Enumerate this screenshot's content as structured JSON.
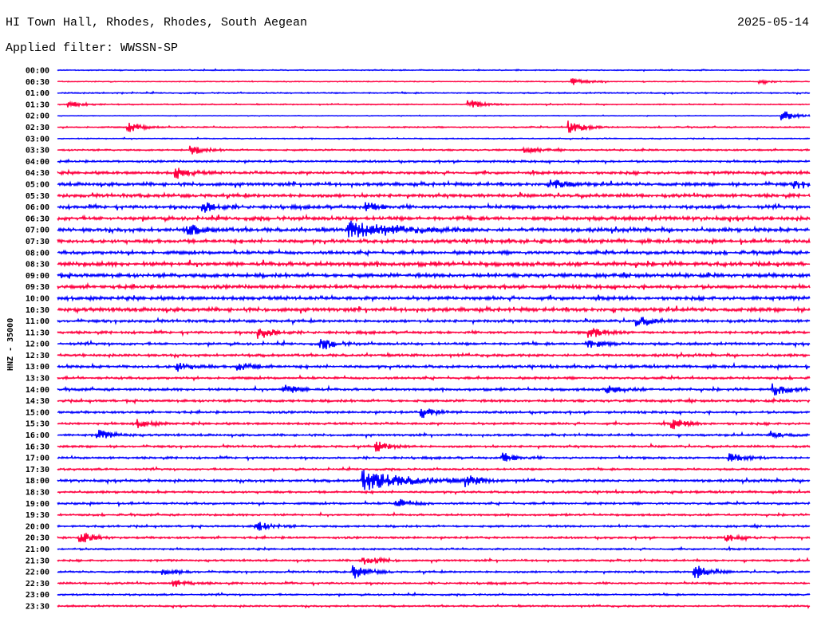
{
  "header": {
    "station": "HI Town Hall, Rhodes, Rhodes, South Aegean",
    "date": "2025-05-14",
    "filter": "Applied filter: WWSSN-SP"
  },
  "chart_data": {
    "type": "line",
    "title": "HI Town Hall, Rhodes, Rhodes, South Aegean",
    "ylabel": "HNZ - 35000",
    "minutes_per_row": 30,
    "colors": [
      "#0000ff",
      "#ff0040"
    ],
    "row_labels": [
      "00:00",
      "00:30",
      "01:00",
      "01:30",
      "02:00",
      "02:30",
      "03:00",
      "03:30",
      "04:00",
      "04:30",
      "05:00",
      "05:30",
      "06:00",
      "06:30",
      "07:00",
      "07:30",
      "08:00",
      "08:30",
      "09:00",
      "09:30",
      "10:00",
      "10:30",
      "11:00",
      "11:30",
      "12:00",
      "12:30",
      "13:00",
      "13:30",
      "14:00",
      "14:30",
      "15:00",
      "15:30",
      "16:00",
      "16:30",
      "17:00",
      "17:30",
      "18:00",
      "18:30",
      "19:00",
      "19:30",
      "20:00",
      "20:30",
      "21:00",
      "21:30",
      "22:00",
      "22:30",
      "23:00",
      "23:30"
    ],
    "noise_level": [
      0.5,
      0.4,
      0.6,
      0.5,
      0.3,
      0.6,
      0.5,
      0.8,
      1.0,
      1.4,
      1.6,
      1.6,
      1.6,
      1.8,
      1.8,
      1.7,
      1.6,
      2.0,
      1.9,
      1.7,
      1.8,
      1.8,
      1.3,
      1.2,
      1.2,
      1.2,
      1.3,
      1.1,
      1.2,
      1.2,
      1.1,
      1.1,
      1.0,
      1.0,
      1.0,
      0.9,
      1.2,
      1.0,
      1.0,
      0.9,
      1.0,
      1.0,
      0.9,
      0.9,
      0.9,
      0.9,
      0.8,
      0.8
    ],
    "events": [
      {
        "row": "00:30",
        "minute": 20.6,
        "amp": 2
      },
      {
        "row": "00:30",
        "minute": 28.1,
        "amp": 1
      },
      {
        "row": "01:30",
        "minute": 0.5,
        "amp": 2
      },
      {
        "row": "01:30",
        "minute": 16.5,
        "amp": 2.5
      },
      {
        "row": "02:00",
        "minute": 29,
        "amp": 3
      },
      {
        "row": "02:30",
        "minute": 2.9,
        "amp": 3
      },
      {
        "row": "02:30",
        "minute": 20.5,
        "amp": 4
      },
      {
        "row": "03:30",
        "minute": 5.4,
        "amp": 2.5
      },
      {
        "row": "03:30",
        "minute": 18.7,
        "amp": 2
      },
      {
        "row": "04:30",
        "minute": 4.8,
        "amp": 3
      },
      {
        "row": "05:00",
        "minute": 19.8,
        "amp": 3
      },
      {
        "row": "05:00",
        "minute": 29.5,
        "amp": 2
      },
      {
        "row": "06:00",
        "minute": 5.9,
        "amp": 3
      },
      {
        "row": "06:00",
        "minute": 12.4,
        "amp": 2.5
      },
      {
        "row": "07:00",
        "minute": 5.3,
        "amp": 3
      },
      {
        "row": "07:00",
        "minute": 11.7,
        "amp": 5
      },
      {
        "row": "11:00",
        "minute": 23.2,
        "amp": 3
      },
      {
        "row": "11:30",
        "minute": 8.1,
        "amp": 4
      },
      {
        "row": "11:30",
        "minute": 21.3,
        "amp": 3
      },
      {
        "row": "12:00",
        "minute": 10.6,
        "amp": 3
      },
      {
        "row": "12:00",
        "minute": 21.2,
        "amp": 3
      },
      {
        "row": "13:00",
        "minute": 4.8,
        "amp": 2.5
      },
      {
        "row": "13:00",
        "minute": 7.3,
        "amp": 2.5
      },
      {
        "row": "14:00",
        "minute": 9.1,
        "amp": 3
      },
      {
        "row": "14:00",
        "minute": 22.0,
        "amp": 2.5
      },
      {
        "row": "14:00",
        "minute": 28.6,
        "amp": 4
      },
      {
        "row": "15:00",
        "minute": 14.6,
        "amp": 3
      },
      {
        "row": "15:30",
        "minute": 3.2,
        "amp": 2.5
      },
      {
        "row": "15:30",
        "minute": 24.6,
        "amp": 3
      },
      {
        "row": "16:00",
        "minute": 1.7,
        "amp": 3
      },
      {
        "row": "16:00",
        "minute": 28.5,
        "amp": 2
      },
      {
        "row": "16:30",
        "minute": 12.8,
        "amp": 3
      },
      {
        "row": "17:00",
        "minute": 17.8,
        "amp": 3
      },
      {
        "row": "17:00",
        "minute": 26.9,
        "amp": 3
      },
      {
        "row": "18:00",
        "minute": 12.3,
        "amp": 6
      },
      {
        "row": "18:00",
        "minute": 16.4,
        "amp": 3
      },
      {
        "row": "19:00",
        "minute": 13.6,
        "amp": 2.5
      },
      {
        "row": "20:00",
        "minute": 8.0,
        "amp": 3
      },
      {
        "row": "20:30",
        "minute": 1.0,
        "amp": 3
      },
      {
        "row": "20:30",
        "minute": 26.7,
        "amp": 2
      },
      {
        "row": "21:30",
        "minute": 12.3,
        "amp": 3
      },
      {
        "row": "22:00",
        "minute": 4.3,
        "amp": 2
      },
      {
        "row": "22:00",
        "minute": 11.9,
        "amp": 4
      },
      {
        "row": "22:00",
        "minute": 25.5,
        "amp": 4
      },
      {
        "row": "22:30",
        "minute": 4.7,
        "amp": 2
      }
    ]
  }
}
